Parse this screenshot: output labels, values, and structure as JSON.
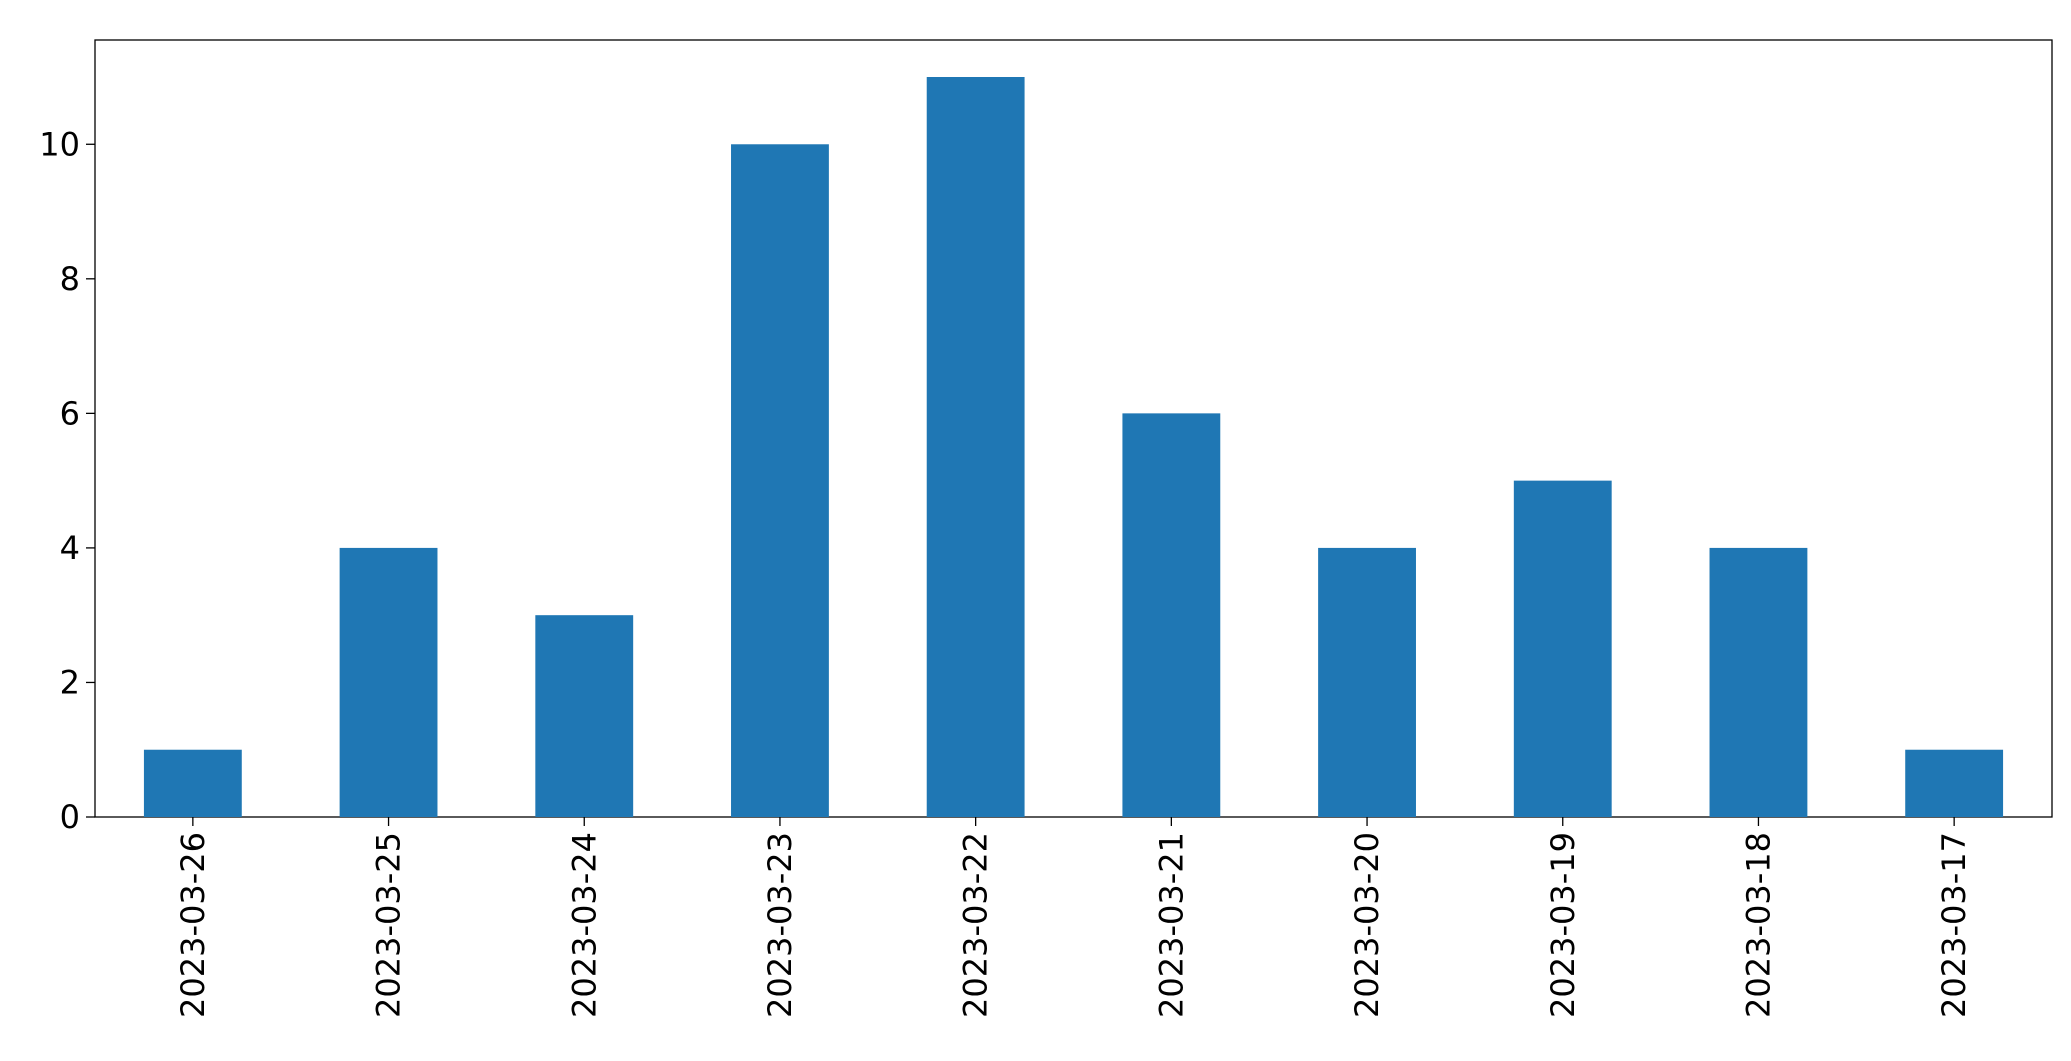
{
  "chart_data": {
    "type": "bar",
    "categories": [
      "2023-03-26",
      "2023-03-25",
      "2023-03-24",
      "2023-03-23",
      "2023-03-22",
      "2023-03-21",
      "2023-03-20",
      "2023-03-19",
      "2023-03-18",
      "2023-03-17"
    ],
    "values": [
      1,
      4,
      3,
      10,
      11,
      6,
      4,
      5,
      4,
      1
    ],
    "color": "#1f77b4",
    "ylim": [
      0,
      11.55
    ],
    "yticks": [
      0,
      2,
      4,
      6,
      8,
      10
    ],
    "grid": false
  }
}
